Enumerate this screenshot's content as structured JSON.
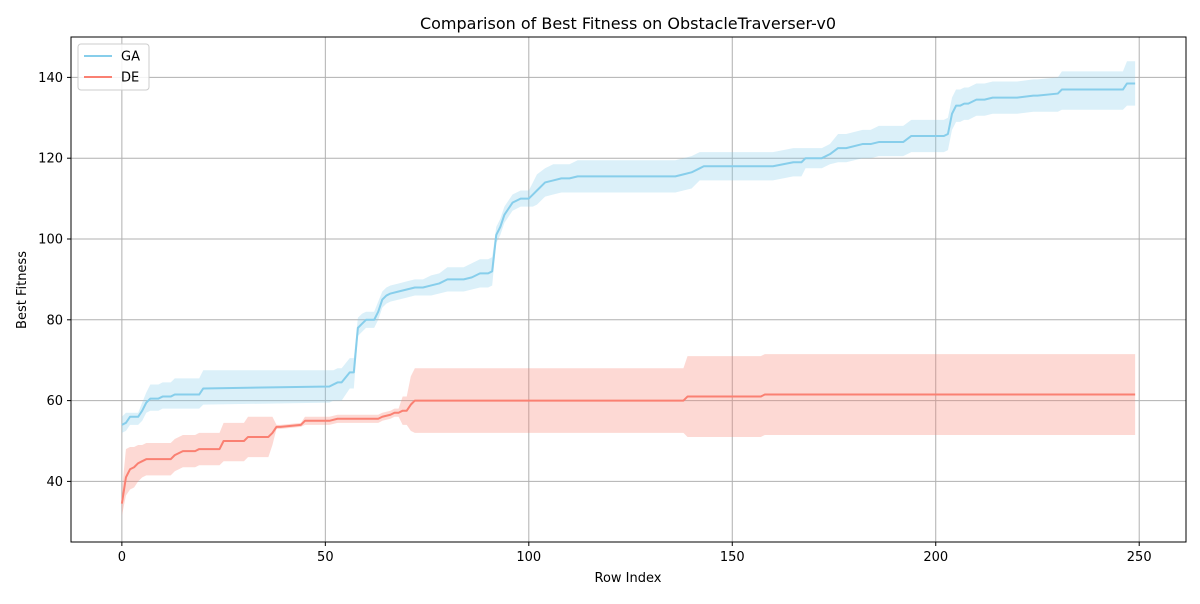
{
  "chart_data": {
    "type": "line",
    "title": "Comparison of Best Fitness on ObstacleTraverser-v0",
    "xlabel": "Row Index",
    "ylabel": "Best Fitness",
    "xlim": [
      -12.5,
      261.5
    ],
    "ylim": [
      25,
      150
    ],
    "xticks": [
      0,
      50,
      100,
      150,
      200,
      250
    ],
    "yticks": [
      40,
      60,
      80,
      100,
      120,
      140
    ],
    "grid": true,
    "legend_position": "top-left",
    "series": [
      {
        "name": "GA",
        "color": "#87ceeb",
        "band_opacity": 0.3,
        "x": [
          0,
          1,
          2,
          4,
          5,
          6,
          7,
          9,
          10,
          12,
          13,
          19,
          20,
          51,
          52,
          53,
          54,
          56,
          57,
          58,
          59,
          60,
          62,
          63,
          64,
          65,
          66,
          68,
          70,
          72,
          74,
          76,
          78,
          80,
          82,
          84,
          86,
          88,
          90,
          91,
          92,
          93,
          94,
          96,
          98,
          100,
          101,
          102,
          104,
          106,
          108,
          110,
          112,
          115,
          120,
          126,
          130,
          136,
          138,
          140,
          142,
          143,
          145,
          150,
          156,
          160,
          165,
          167,
          168,
          172,
          174,
          176,
          178,
          182,
          184,
          186,
          190,
          192,
          194,
          198,
          202,
          203,
          204,
          205,
          206,
          207,
          208,
          210,
          212,
          214,
          216,
          220,
          224,
          225,
          230,
          231,
          234,
          236,
          240,
          244,
          246,
          247,
          249
        ],
        "y": [
          54,
          54.5,
          56,
          56,
          57.5,
          59.5,
          60.5,
          60.5,
          61,
          61,
          61.5,
          61.5,
          63,
          63.5,
          64,
          64.5,
          64.5,
          67,
          67,
          78,
          79,
          80,
          80,
          82,
          85,
          86,
          86.5,
          87,
          87.5,
          88,
          88,
          88.5,
          89,
          90,
          90,
          90,
          90.5,
          91.5,
          91.5,
          92,
          101,
          103,
          106,
          109,
          110,
          110,
          111,
          112,
          114,
          114.5,
          115,
          115,
          115.5,
          115.5,
          115.5,
          115.5,
          115.5,
          115.5,
          116,
          116.5,
          117.5,
          118,
          118,
          118,
          118,
          118,
          119,
          119,
          120,
          120,
          121,
          122.5,
          122.5,
          123.5,
          123.5,
          124,
          124,
          124,
          125.5,
          125.5,
          125.5,
          126,
          131,
          133,
          133,
          133.5,
          133.5,
          134.5,
          134.5,
          135,
          135,
          135,
          135.5,
          135.5,
          136,
          137,
          137,
          137,
          137,
          137,
          137,
          138.5,
          138.5
        ],
        "lower": [
          52,
          52.5,
          54,
          54,
          55,
          57,
          57.5,
          57.5,
          58,
          58,
          58,
          58,
          59,
          59.5,
          60,
          60,
          60,
          63,
          63,
          76,
          77,
          78,
          78,
          80,
          83,
          84,
          84.5,
          85,
          85.5,
          86,
          86,
          86,
          86.5,
          87,
          87,
          87,
          87.5,
          88,
          88,
          88.5,
          99,
          101,
          104,
          107,
          108,
          108,
          108,
          108.5,
          110.5,
          111,
          111.5,
          111.5,
          111.5,
          111.5,
          111.5,
          111.5,
          111.5,
          111.5,
          112,
          112.5,
          114.5,
          114.5,
          114.5,
          114.5,
          114.5,
          114.5,
          115.5,
          115.5,
          117.5,
          117.5,
          118.5,
          119,
          119,
          120,
          120,
          120.5,
          120.5,
          120.5,
          121.5,
          121.5,
          121.5,
          122,
          127,
          129,
          129,
          129.5,
          129.5,
          130.5,
          130.5,
          131,
          131,
          131,
          131.5,
          131.5,
          131.5,
          132,
          132,
          132,
          132,
          132,
          132,
          133,
          133
        ],
        "upper": [
          56,
          57,
          57,
          57,
          59.5,
          62,
          64,
          64,
          64.5,
          64.5,
          65.5,
          65.5,
          67.5,
          67.5,
          67.5,
          68,
          68,
          70.5,
          70.5,
          80.5,
          81.5,
          82,
          82,
          84.5,
          87,
          88,
          88.5,
          89,
          89.5,
          90,
          90,
          91,
          91.5,
          93,
          93,
          93,
          94,
          95,
          95,
          95.5,
          103,
          105,
          108,
          111,
          112,
          112,
          114,
          116,
          117.5,
          118.5,
          118.5,
          118.5,
          119.5,
          119.5,
          119.5,
          119.5,
          119.5,
          119.5,
          120,
          120.5,
          121.5,
          121.5,
          121.5,
          121.5,
          121.5,
          121.5,
          122.5,
          122.5,
          122.5,
          122.5,
          123.5,
          126,
          126,
          127,
          127,
          128,
          128,
          128,
          129.5,
          129.5,
          129.5,
          130,
          135,
          137,
          137,
          137.5,
          137.5,
          138.5,
          138.5,
          139,
          139,
          139,
          139.5,
          139.5,
          140,
          141.5,
          141.5,
          141.5,
          141.5,
          141.5,
          141.5,
          144,
          144
        ]
      },
      {
        "name": "DE",
        "color": "#fa8072",
        "band_opacity": 0.3,
        "x": [
          0,
          1,
          2,
          3,
          4,
          5,
          6,
          7,
          10,
          12,
          13,
          14,
          15,
          18,
          19,
          24,
          25,
          30,
          31,
          36,
          37,
          38,
          39,
          44,
          45,
          50,
          51,
          53,
          54,
          63,
          64,
          66,
          67,
          68,
          69,
          70,
          71,
          72,
          73,
          80,
          100,
          130,
          138,
          139,
          145,
          150,
          156,
          157,
          158,
          170,
          200,
          230,
          249
        ],
        "y": [
          34.5,
          41,
          43,
          43.5,
          44.5,
          45,
          45.5,
          45.5,
          45.5,
          45.5,
          46.5,
          47,
          47.5,
          47.5,
          48,
          48,
          50,
          50,
          51,
          51,
          52,
          53.5,
          53.5,
          54,
          55,
          55,
          55,
          55.5,
          55.5,
          55.5,
          56,
          56.5,
          57,
          57,
          57.5,
          57.5,
          59,
          60,
          60,
          60,
          60,
          60,
          60,
          61,
          61,
          61,
          61,
          61,
          61.5,
          61.5,
          61.5,
          61.5,
          61.5
        ],
        "lower": [
          31.5,
          36.5,
          38,
          38.5,
          40,
          41,
          41.5,
          41.5,
          41.5,
          41.5,
          42.5,
          43,
          43.5,
          43.5,
          44,
          44,
          45,
          45,
          46,
          46,
          49,
          53,
          53,
          53.5,
          54,
          54,
          54,
          54.5,
          54.5,
          54.5,
          55,
          55.5,
          56,
          56,
          54,
          54,
          52.5,
          52,
          52,
          52,
          52,
          52,
          52,
          51,
          51,
          51,
          51,
          51,
          51.5,
          51.5,
          51.5,
          51.5,
          51.5
        ],
        "upper": [
          37.5,
          48,
          48.5,
          48.5,
          49,
          49,
          49.5,
          49.5,
          49.5,
          49.5,
          50.5,
          51,
          51.5,
          51.5,
          52,
          52,
          54.5,
          54.5,
          56,
          56,
          56,
          54,
          54,
          54.5,
          56,
          56,
          56,
          56.5,
          56.5,
          56.5,
          57,
          57.5,
          58,
          58,
          61,
          61,
          66,
          68,
          68,
          68,
          68,
          68,
          68,
          71,
          71,
          71,
          71,
          71,
          71.5,
          71.5,
          71.5,
          71.5,
          71.5
        ]
      }
    ]
  }
}
